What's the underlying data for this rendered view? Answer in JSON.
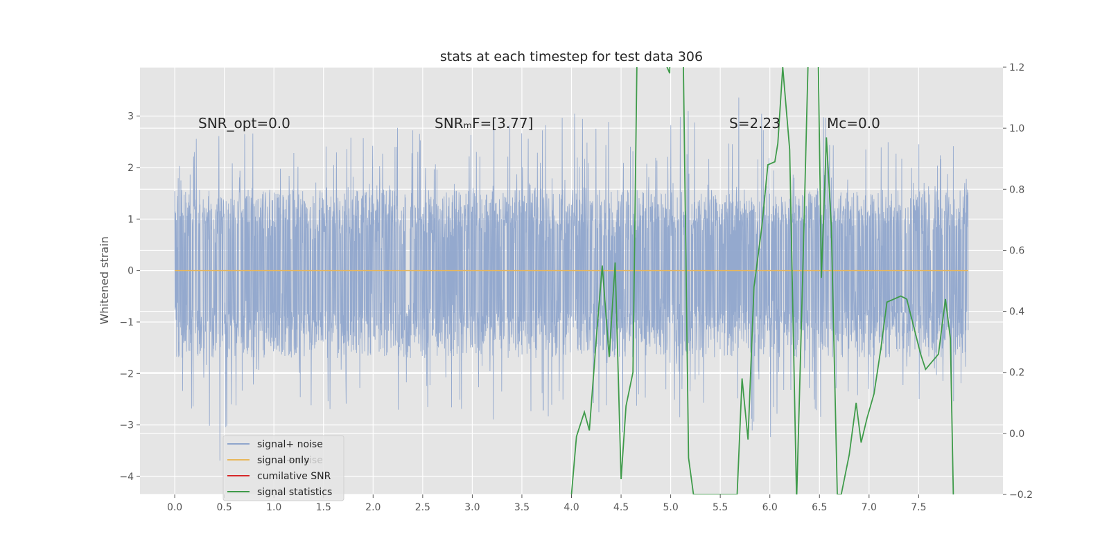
{
  "chart_data": {
    "type": "line",
    "title": "stats at each timestep for test data 306",
    "ylabel": "Whitened strain",
    "xlabel": "",
    "xlim": [
      -0.35,
      8.35
    ],
    "ylim": [
      -4.35,
      3.95
    ],
    "y2lim": [
      -0.2,
      1.2
    ],
    "grid": true,
    "legend_position": "lower-left",
    "x_ticks": [
      "0.0",
      "0.5",
      "1.0",
      "1.5",
      "2.0",
      "2.5",
      "3.0",
      "3.5",
      "4.0",
      "4.5",
      "5.0",
      "5.5",
      "6.0",
      "6.5",
      "7.0",
      "7.5"
    ],
    "y_ticks": [
      "3",
      "2",
      "1",
      "0",
      "−1",
      "−2",
      "−3",
      "−4"
    ],
    "y2_ticks": [
      "1.2",
      "1.0",
      "0.8",
      "0.6",
      "0.4",
      "0.2",
      "0.0",
      "−0.2"
    ],
    "annotations": [
      {
        "id": "snr_opt",
        "text": "SNR_opt=0.0",
        "x": 0.2,
        "y": 2.8
      },
      {
        "id": "snr_mf",
        "text": "SNRₘF=[3.77]",
        "x": 2.6,
        "y": 2.8
      },
      {
        "id": "s",
        "text": "S=2.23",
        "x": 5.6,
        "y": 2.8
      },
      {
        "id": "mc",
        "text": "Mᴄ=0.0",
        "x": 6.6,
        "y": 2.8
      }
    ],
    "series": [
      {
        "name": "signal+ noise",
        "color": "#8fa5cc",
        "axis": "left",
        "x_range": [
          0.0,
          8.0
        ],
        "band": [
          -1.0,
          1.5
        ],
        "upper_envelope": [
          [
            0.0,
            1.9
          ],
          [
            0.1,
            2.3
          ],
          [
            0.3,
            2.75
          ],
          [
            0.6,
            2.7
          ],
          [
            0.8,
            2.9
          ],
          [
            1.0,
            2.85
          ],
          [
            1.15,
            2.3
          ],
          [
            1.35,
            3.1
          ],
          [
            1.6,
            2.6
          ],
          [
            2.0,
            2.6
          ],
          [
            2.35,
            2.9
          ],
          [
            2.6,
            2.6
          ],
          [
            2.9,
            2.75
          ],
          [
            3.0,
            2.8
          ],
          [
            3.3,
            2.7
          ],
          [
            3.6,
            2.6
          ],
          [
            3.75,
            2.85
          ],
          [
            4.0,
            3.1
          ],
          [
            4.3,
            2.8
          ],
          [
            4.55,
            2.6
          ],
          [
            4.85,
            2.6
          ],
          [
            5.15,
            3.3
          ],
          [
            5.5,
            2.75
          ],
          [
            5.75,
            3.6
          ],
          [
            6.0,
            2.8
          ],
          [
            6.3,
            2.9
          ],
          [
            6.5,
            3.1
          ],
          [
            6.75,
            2.6
          ],
          [
            7.1,
            2.5
          ],
          [
            7.4,
            2.6
          ],
          [
            7.75,
            2.5
          ],
          [
            8.0,
            1.5
          ]
        ],
        "lower_envelope": [
          [
            0.0,
            -3.05
          ],
          [
            0.15,
            -3.1
          ],
          [
            0.4,
            -4.0
          ],
          [
            0.7,
            -2.7
          ],
          [
            0.95,
            -3.25
          ],
          [
            1.2,
            -2.7
          ],
          [
            1.5,
            -2.8
          ],
          [
            1.8,
            -2.5
          ],
          [
            2.2,
            -2.7
          ],
          [
            2.5,
            -2.9
          ],
          [
            2.9,
            -3.0
          ],
          [
            3.1,
            -2.8
          ],
          [
            3.5,
            -3.2
          ],
          [
            3.85,
            -2.9
          ],
          [
            4.2,
            -2.9
          ],
          [
            4.45,
            -3.65
          ],
          [
            4.7,
            -2.8
          ],
          [
            5.0,
            -3.05
          ],
          [
            5.3,
            -2.6
          ],
          [
            5.7,
            -3.1
          ],
          [
            6.0,
            -3.5
          ],
          [
            6.3,
            -2.6
          ],
          [
            6.65,
            -3.0
          ],
          [
            7.0,
            -2.9
          ],
          [
            7.3,
            -2.6
          ],
          [
            7.65,
            -2.7
          ],
          [
            7.95,
            -2.9
          ],
          [
            8.0,
            -1.7
          ]
        ]
      },
      {
        "name": "signal only",
        "color": "#e8b75a",
        "axis": "left",
        "x": [
          0.0,
          8.0
        ],
        "y": [
          0.0,
          0.0
        ]
      },
      {
        "name": "cumilative SNR",
        "color": "#d62728",
        "axis": "right",
        "x": [],
        "y": []
      },
      {
        "name": "signal statistics",
        "color": "#3f9b4a",
        "axis": "right",
        "x": [
          4.0,
          4.05,
          4.13,
          4.18,
          4.25,
          4.31,
          4.38,
          4.44,
          4.5,
          4.55,
          4.62,
          4.66,
          4.7,
          4.99,
          5.0,
          5.12,
          5.18,
          5.23,
          5.67,
          5.72,
          5.78,
          5.84,
          5.92,
          5.98,
          6.05,
          6.08,
          6.13,
          6.2,
          6.27,
          6.33,
          6.4,
          6.48,
          6.52,
          6.57,
          6.62,
          6.68,
          6.72,
          6.8,
          6.87,
          6.92,
          6.98,
          7.05,
          7.12,
          7.18,
          7.25,
          7.32,
          7.38,
          7.45,
          7.52,
          7.57,
          7.7,
          7.77,
          7.82,
          7.85
        ],
        "y": [
          -0.2,
          -0.01,
          0.07,
          0.01,
          0.31,
          0.55,
          0.25,
          0.56,
          -0.15,
          0.09,
          0.2,
          1.21,
          1.4,
          1.18,
          1.4,
          1.4,
          -0.08,
          -0.2,
          -0.2,
          0.18,
          -0.02,
          0.48,
          0.68,
          0.88,
          0.89,
          0.95,
          1.2,
          0.93,
          -0.22,
          0.5,
          1.4,
          1.4,
          0.51,
          0.97,
          0.68,
          -0.2,
          -0.2,
          -0.07,
          0.1,
          -0.03,
          0.05,
          0.13,
          0.28,
          0.43,
          0.44,
          0.45,
          0.44,
          0.35,
          0.26,
          0.21,
          0.26,
          0.44,
          0.31,
          -0.2
        ]
      }
    ]
  }
}
